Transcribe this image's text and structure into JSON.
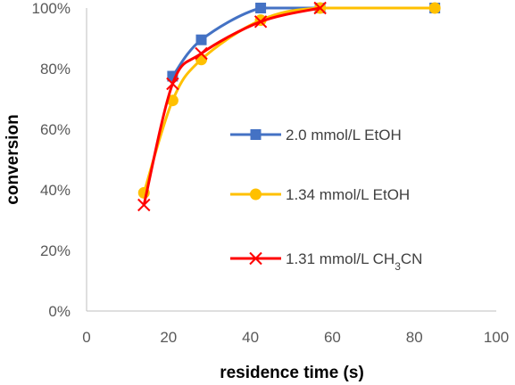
{
  "chart_data": {
    "type": "line",
    "xlabel": "residence time (s)",
    "ylabel": "conversion",
    "xlim": [
      0,
      100
    ],
    "ylim": [
      0,
      100
    ],
    "x_ticks": [
      "0",
      "20",
      "40",
      "60",
      "80",
      "100"
    ],
    "y_ticks": [
      "0%",
      "20%",
      "40%",
      "60%",
      "80%",
      "100%"
    ],
    "grid": false,
    "legend_position": "right",
    "series": [
      {
        "name": "2.0 mmol/L EtOH",
        "name_parts": [
          "2.0 mmol/L EtOH"
        ],
        "color": "#4472C4",
        "marker": "square",
        "x": [
          21,
          28,
          42.5,
          57,
          85
        ],
        "y": [
          77.5,
          89.5,
          100,
          100,
          100
        ]
      },
      {
        "name": "1.34 mmol/L EtOH",
        "name_parts": [
          "1.34 mmol/L EtOH"
        ],
        "color": "#FFC000",
        "marker": "circle",
        "x": [
          14,
          21,
          28,
          42.5,
          57,
          85
        ],
        "y": [
          39,
          69.5,
          83,
          96,
          100,
          100
        ]
      },
      {
        "name": "1.31 mmol/L CH3CN",
        "name_parts": [
          "1.31 mmol/L CH",
          "3",
          "CN"
        ],
        "color": "#FF0000",
        "marker": "x",
        "x": [
          14,
          21,
          28,
          42.5,
          57
        ],
        "y": [
          35,
          75,
          85,
          95.5,
          100
        ]
      }
    ]
  }
}
